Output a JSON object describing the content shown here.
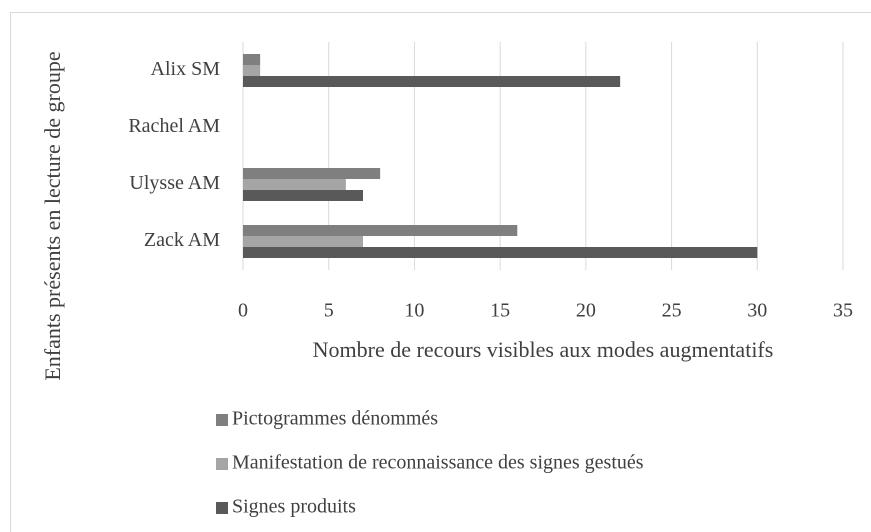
{
  "chart_data": {
    "type": "hbar",
    "categories": [
      "Zack AM",
      "Ulysse AM",
      "Rachel AM",
      "Alix SM"
    ],
    "series": [
      {
        "name": "Pictogrammes dénommés",
        "color": "#7f7f7f",
        "values": [
          16,
          8,
          0,
          1
        ]
      },
      {
        "name": "Manifestation de reconnaissance des signes gestués",
        "color": "#a5a5a5",
        "values": [
          7,
          6,
          0,
          1
        ]
      },
      {
        "name": "Signes produits",
        "color": "#595959",
        "values": [
          30,
          7,
          0,
          22
        ]
      }
    ],
    "xlabel": "Nombre de recours visibles aux modes augmentatifs",
    "ylabel": "Enfants présents en lecture de groupe",
    "xlim": [
      0,
      35
    ],
    "xticks": [
      0,
      5,
      10,
      15,
      20,
      25,
      30,
      35
    ],
    "grid": true,
    "legend": "bottom"
  }
}
